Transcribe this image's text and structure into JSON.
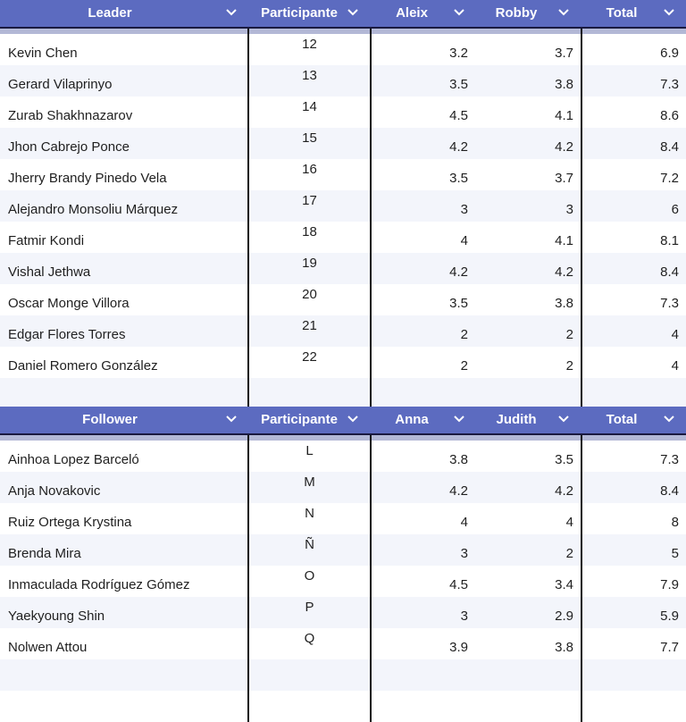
{
  "leader_table": {
    "headers": {
      "name": "Leader",
      "participant": "Participante",
      "judge1": "Aleix",
      "judge2": "Robby",
      "total": "Total"
    },
    "rows": [
      {
        "name": "Kevin Chen",
        "participant": "12",
        "judge1": "3.2",
        "judge2": "3.7",
        "total": "6.9"
      },
      {
        "name": "Gerard Vilaprinyo",
        "participant": "13",
        "judge1": "3.5",
        "judge2": "3.8",
        "total": "7.3"
      },
      {
        "name": "Zurab Shakhnazarov",
        "participant": "14",
        "judge1": "4.5",
        "judge2": "4.1",
        "total": "8.6"
      },
      {
        "name": "Jhon Cabrejo Ponce",
        "participant": "15",
        "judge1": "4.2",
        "judge2": "4.2",
        "total": "8.4"
      },
      {
        "name": "Jherry Brandy Pinedo Vela",
        "participant": "16",
        "judge1": "3.5",
        "judge2": "3.7",
        "total": "7.2"
      },
      {
        "name": "Alejandro Monsoliu Márquez",
        "participant": "17",
        "judge1": "3",
        "judge2": "3",
        "total": "6"
      },
      {
        "name": "Fatmir Kondi",
        "participant": "18",
        "judge1": "4",
        "judge2": "4.1",
        "total": "8.1"
      },
      {
        "name": "Vishal Jethwa",
        "participant": "19",
        "judge1": "4.2",
        "judge2": "4.2",
        "total": "8.4"
      },
      {
        "name": "Oscar Monge Villora",
        "participant": "20",
        "judge1": "3.5",
        "judge2": "3.8",
        "total": "7.3"
      },
      {
        "name": "Edgar Flores Torres",
        "participant": "21",
        "judge1": "2",
        "judge2": "2",
        "total": "4"
      },
      {
        "name": "Daniel Romero González",
        "participant": "22",
        "judge1": "2",
        "judge2": "2",
        "total": "4"
      }
    ]
  },
  "follower_table": {
    "headers": {
      "name": "Follower",
      "participant": "Participante",
      "judge1": "Anna",
      "judge2": "Judith",
      "total": "Total"
    },
    "rows": [
      {
        "name": "Ainhoa Lopez Barceló",
        "participant": "L",
        "judge1": "3.8",
        "judge2": "3.5",
        "total": "7.3"
      },
      {
        "name": "Anja Novakovic",
        "participant": "M",
        "judge1": "4.2",
        "judge2": "4.2",
        "total": "8.4"
      },
      {
        "name": "Ruiz Ortega Krystina",
        "participant": "N",
        "judge1": "4",
        "judge2": "4",
        "total": "8"
      },
      {
        "name": "Brenda Mira",
        "participant": "Ñ",
        "judge1": "3",
        "judge2": "2",
        "total": "5"
      },
      {
        "name": "Inmaculada Rodríguez Gómez",
        "participant": "O",
        "judge1": "4.5",
        "judge2": "3.4",
        "total": "7.9"
      },
      {
        "name": "Yaekyoung Shin",
        "participant": "P",
        "judge1": "3",
        "judge2": "2.9",
        "total": "5.9"
      },
      {
        "name": "Nolwen Attou",
        "participant": "Q",
        "judge1": "3.9",
        "judge2": "3.8",
        "total": "7.7"
      }
    ]
  },
  "icons": {
    "column_menu": "chevron-down-icon"
  },
  "colors": {
    "header_bg": "#5c6bc0",
    "header_text": "#ffffff",
    "row_alt_bg": "#f3f5fb",
    "band": "#b3b8d6"
  }
}
